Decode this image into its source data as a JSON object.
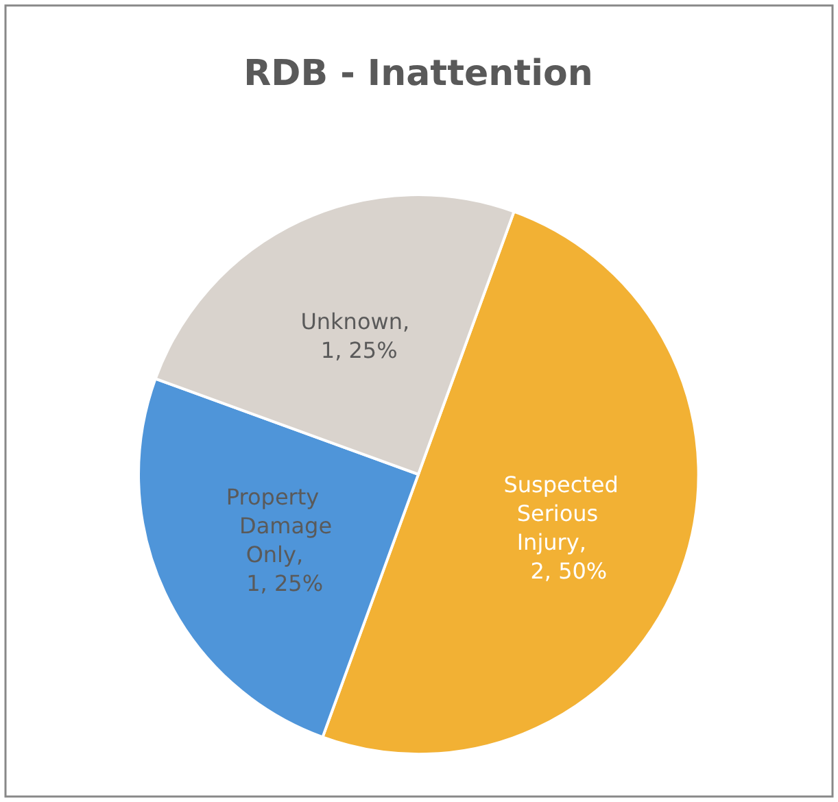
{
  "chart_data": {
    "type": "pie",
    "title": "RDB - Inattention",
    "categories": [
      "Suspected Serious Injury",
      "Property Damage Only",
      "Unknown"
    ],
    "values": [
      2,
      1,
      1
    ],
    "value_labels": [
      ", 2, 50%",
      ", 1, 25%",
      ", 1, 25%"
    ],
    "colors": [
      "#f2b134",
      "#4f95d9",
      "#d9d3cd"
    ],
    "legend": false
  }
}
